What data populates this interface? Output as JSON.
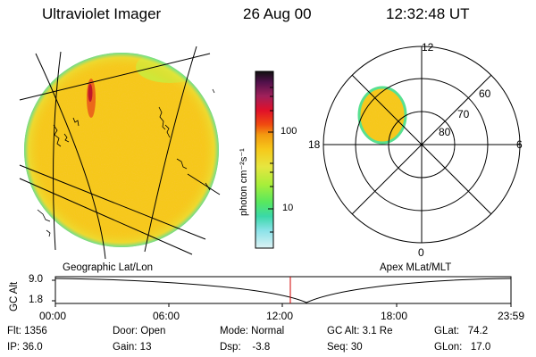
{
  "header": {
    "title": "Ultraviolet Imager",
    "date": "26 Aug 00",
    "time": "12:32:48 UT"
  },
  "colorbar": {
    "unit_label": "photon cm⁻²s⁻¹",
    "tick_100": "100",
    "tick_10": "10",
    "colors": [
      "#101010",
      "#50104a",
      "#a0205a",
      "#e0102a",
      "#f04a10",
      "#f39b10",
      "#f6c81a",
      "#e6e640",
      "#a8ee3a",
      "#58e85e",
      "#3ad8a8",
      "#8ae2e8",
      "#dcf2f4"
    ]
  },
  "polar_plot": {
    "mlt_labels": {
      "top": "12",
      "left": "18",
      "right": "6",
      "bottom": "0"
    },
    "lat_labels": [
      "60",
      "70",
      "80"
    ]
  },
  "captions": {
    "left": "Geographic Lat/Lon",
    "right": "Apex MLat/MLT"
  },
  "timeline": {
    "axis_label": "GC Alt",
    "y_ticks": [
      "9.0",
      "1.8"
    ],
    "x_ticks": [
      "00:00",
      "06:00",
      "12:00",
      "18:00",
      "23:59"
    ],
    "marker_time": "12:32"
  },
  "status": {
    "flt": "Flt: 1356",
    "ip": "IP: 36.0",
    "door": "Door: Open",
    "gain": "Gain: 13",
    "mode": "Mode: Normal",
    "dsp": "Dsp:    -3.8",
    "gc_alt": "GC Alt: 3.1 Re",
    "seq": "Seq: 30",
    "glat": "GLat:   74.2",
    "glon": "GLon:   17.0"
  },
  "colors": {
    "disk_base": "#f6c81a",
    "disk_bright": "#e0102a",
    "marker_line": "#d00000"
  }
}
